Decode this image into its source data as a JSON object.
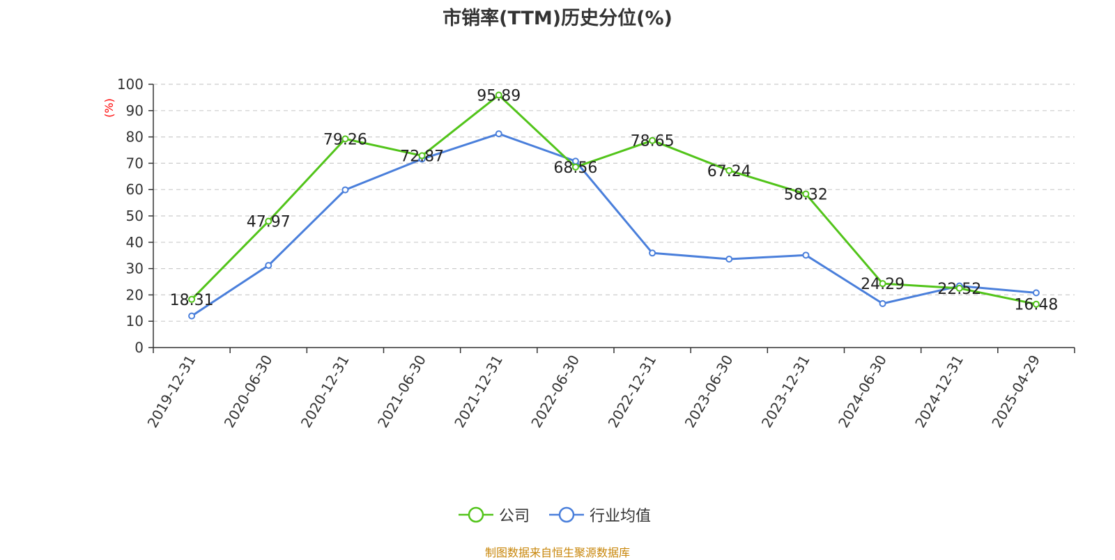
{
  "title": "市销率(TTM)历史分位(%)",
  "source_text": "制图数据来自恒生聚源数据库",
  "colors": {
    "company": "#52c41a",
    "industry": "#4a7fdb",
    "label_red": "#ff0000"
  },
  "legend": {
    "company": "公司",
    "industry": "行业均值"
  },
  "chart_data": {
    "type": "line",
    "title": "市销率(TTM)历史分位(%)",
    "ylabel": "(%)",
    "xlabel": "",
    "ylim": [
      0,
      100
    ],
    "yticks": [
      0,
      10,
      20,
      30,
      40,
      50,
      60,
      70,
      80,
      90,
      100
    ],
    "grid": true,
    "legend_position": "bottom-center",
    "categories": [
      "2019-12-31",
      "2020-06-30",
      "2020-12-31",
      "2021-06-30",
      "2021-12-31",
      "2022-06-30",
      "2022-12-31",
      "2023-06-30",
      "2023-12-31",
      "2024-06-30",
      "2024-12-31",
      "2025-04-29"
    ],
    "series": [
      {
        "name": "公司",
        "color": "#52c41a",
        "show_labels": true,
        "values": [
          18.31,
          47.97,
          79.26,
          72.87,
          95.89,
          68.56,
          78.65,
          67.24,
          58.32,
          24.29,
          22.52,
          16.48
        ]
      },
      {
        "name": "行业均值",
        "color": "#4a7fdb",
        "show_labels": false,
        "values": [
          12.0,
          31.2,
          59.9,
          71.6,
          81.2,
          70.8,
          35.9,
          33.6,
          35.1,
          16.7,
          23.4,
          20.8
        ]
      }
    ]
  }
}
